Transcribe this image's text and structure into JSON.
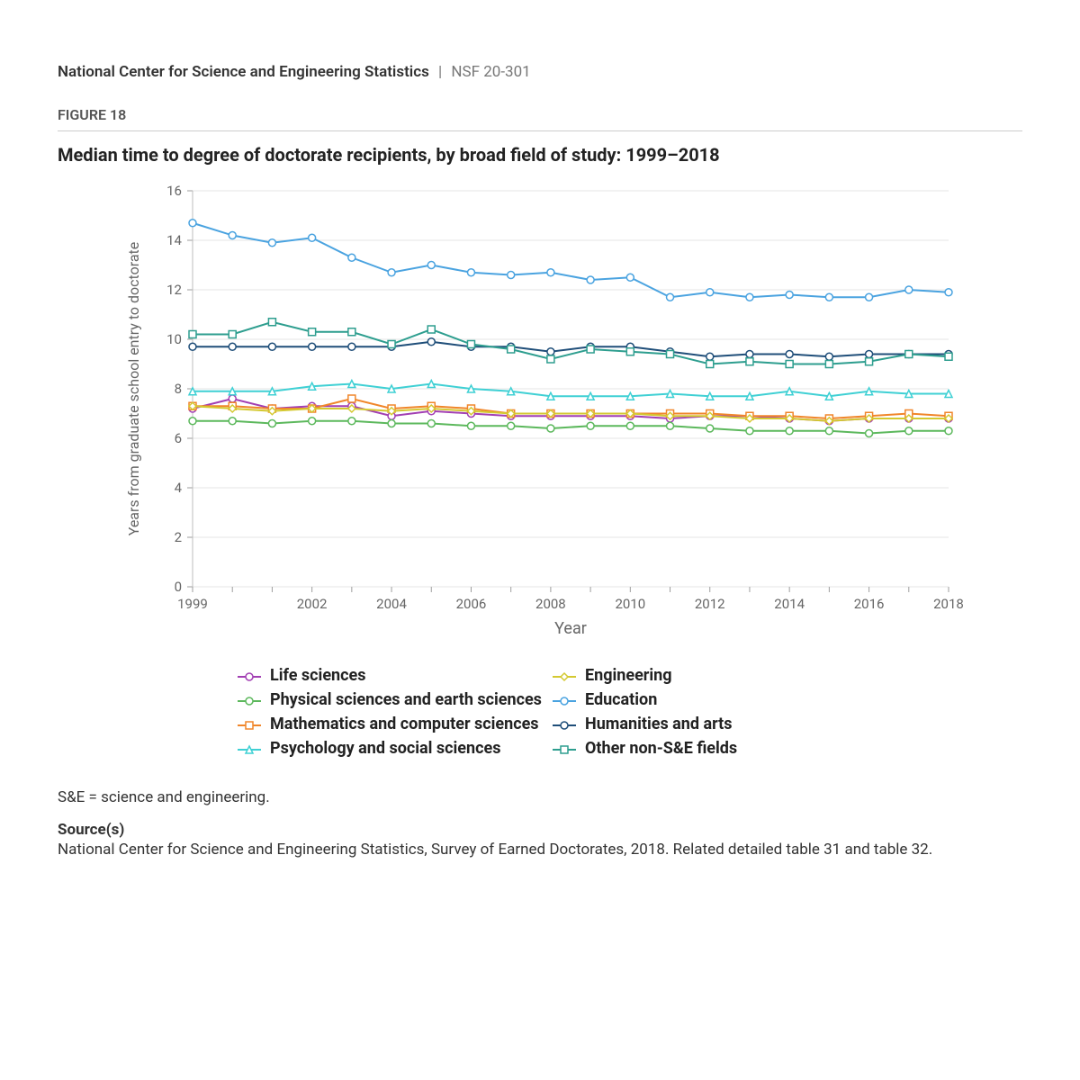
{
  "header": {
    "org": "National Center for Science and Engineering Statistics",
    "separator": "|",
    "code": "NSF 20-301"
  },
  "figure": {
    "label": "FIGURE 18",
    "title": "Median time to degree of doctorate recipients, by broad field of study: 1999–2018"
  },
  "chart": {
    "type": "line",
    "background_color": "#ffffff",
    "grid_color": "#e6e6e6",
    "axis_color": "#bdbdbd",
    "tick_color": "#9e9e9e",
    "label_color": "#666666",
    "axis_label_fontsize": 16,
    "tick_label_fontsize": 15,
    "x": {
      "label": "Year",
      "ticks": [
        1999,
        2002,
        2004,
        2006,
        2008,
        2010,
        2012,
        2014,
        2016,
        2018
      ],
      "min": 1999,
      "max": 2018
    },
    "y": {
      "label": "Years from graduate school entry to doctorate",
      "ticks": [
        0,
        2,
        4,
        6,
        8,
        10,
        12,
        14,
        16
      ],
      "min": 0,
      "max": 16
    },
    "years": [
      1999,
      2000,
      2001,
      2002,
      2003,
      2004,
      2005,
      2006,
      2007,
      2008,
      2009,
      2010,
      2011,
      2012,
      2013,
      2014,
      2015,
      2016,
      2017,
      2018
    ],
    "line_width": 2,
    "marker_size": 4,
    "marker_fill": "#ffffff",
    "series": [
      {
        "name": "Life sciences",
        "color": "#a23fb3",
        "marker": "circle",
        "values": [
          7.2,
          7.6,
          7.2,
          7.3,
          7.3,
          6.9,
          7.1,
          7.0,
          6.9,
          6.9,
          6.9,
          6.9,
          6.8,
          6.9,
          6.9,
          6.8,
          6.7,
          6.8,
          6.8,
          6.8
        ]
      },
      {
        "name": "Physical sciences and earth sciences",
        "color": "#5cb85c",
        "marker": "circle",
        "values": [
          6.7,
          6.7,
          6.6,
          6.7,
          6.7,
          6.6,
          6.6,
          6.5,
          6.5,
          6.4,
          6.5,
          6.5,
          6.5,
          6.4,
          6.3,
          6.3,
          6.3,
          6.2,
          6.3,
          6.3
        ]
      },
      {
        "name": "Mathematics and computer sciences",
        "color": "#f0862a",
        "marker": "square",
        "values": [
          7.3,
          7.3,
          7.2,
          7.2,
          7.6,
          7.2,
          7.3,
          7.2,
          7.0,
          7.0,
          7.0,
          7.0,
          7.0,
          7.0,
          6.9,
          6.9,
          6.8,
          6.9,
          7.0,
          6.9
        ]
      },
      {
        "name": "Psychology and social sciences",
        "color": "#3fd0d4",
        "marker": "triangle",
        "values": [
          7.9,
          7.9,
          7.9,
          8.1,
          8.2,
          8.0,
          8.2,
          8.0,
          7.9,
          7.7,
          7.7,
          7.7,
          7.8,
          7.7,
          7.7,
          7.9,
          7.7,
          7.9,
          7.8,
          7.8
        ]
      },
      {
        "name": "Engineering",
        "color": "#d4c931",
        "marker": "diamond",
        "values": [
          7.3,
          7.2,
          7.1,
          7.2,
          7.2,
          7.1,
          7.2,
          7.1,
          7.0,
          7.0,
          7.0,
          7.0,
          6.9,
          6.9,
          6.8,
          6.8,
          6.7,
          6.8,
          6.8,
          6.8
        ]
      },
      {
        "name": "Education",
        "color": "#4aa3e0",
        "marker": "circle",
        "values": [
          14.7,
          14.2,
          13.9,
          14.1,
          13.3,
          12.7,
          13.0,
          12.7,
          12.6,
          12.7,
          12.4,
          12.5,
          11.7,
          11.9,
          11.7,
          11.8,
          11.7,
          11.7,
          12.0,
          11.9
        ]
      },
      {
        "name": "Humanities and arts",
        "color": "#1f4e79",
        "marker": "circle",
        "values": [
          9.7,
          9.7,
          9.7,
          9.7,
          9.7,
          9.7,
          9.9,
          9.7,
          9.7,
          9.5,
          9.7,
          9.7,
          9.5,
          9.3,
          9.4,
          9.4,
          9.3,
          9.4,
          9.4,
          9.4
        ]
      },
      {
        "name": "Other non-S&E fields",
        "color": "#2e9e8f",
        "marker": "square",
        "values": [
          10.2,
          10.2,
          10.7,
          10.3,
          10.3,
          9.8,
          10.4,
          9.8,
          9.6,
          9.2,
          9.6,
          9.5,
          9.4,
          9.0,
          9.1,
          9.0,
          9.0,
          9.1,
          9.4,
          9.3
        ]
      }
    ]
  },
  "footnote": "S&E = science and engineering.",
  "sources": {
    "label": "Source(s)",
    "text": "National Center for Science and Engineering Statistics, Survey of Earned Doctorates, 2018. Related detailed table 31 and table 32."
  }
}
